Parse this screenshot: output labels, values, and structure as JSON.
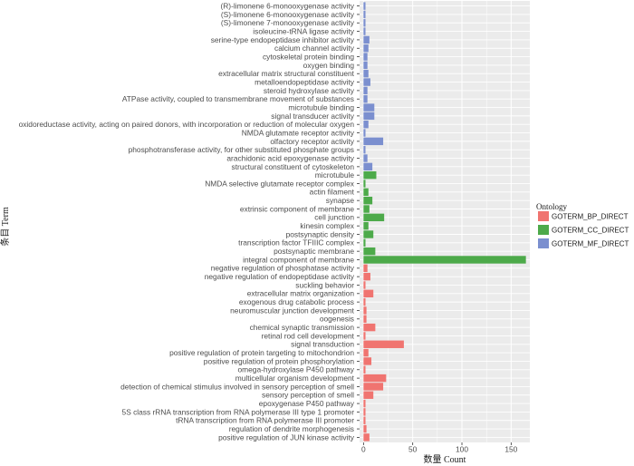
{
  "chart_data": {
    "type": "bar",
    "title": "",
    "xlabel": "数量 Count",
    "ylabel": "条目 Term",
    "xlim": [
      -4,
      169
    ],
    "xticks": [
      0,
      50,
      100,
      150
    ],
    "grid": true,
    "legend": {
      "title": "Ontology",
      "position": "right"
    },
    "series": [
      {
        "name": "GOTERM_BP_DIRECT",
        "color": "#F07470",
        "categories": [
          "negative regulation of phosphatase activity",
          "negative regulation of endopeptidase activity",
          "suckling behavior",
          "extracellular matrix organization",
          "exogenous drug catabolic process",
          "neuromuscular junction development",
          "oogenesis",
          "chemical synaptic transmission",
          "retinal rod cell development",
          "signal transduction",
          "positive regulation of protein targeting to mitochondrion",
          "positive regulation of protein phosphorylation",
          "omega-hydroxylase P450 pathway",
          "multicellular organism development",
          "detection of chemical stimulus involved in sensory perception of smell",
          "sensory perception of smell",
          "epoxygenase P450 pathway",
          "5S class rRNA transcription from RNA polymerase III type 1 promoter",
          "tRNA transcription from RNA polymerase III promoter",
          "regulation of dendrite morphogenesis",
          "positive regulation of JUN kinase activity"
        ],
        "values": [
          4,
          7,
          2,
          10,
          2,
          3,
          3,
          12,
          2,
          41,
          5,
          8,
          2,
          23,
          20,
          10,
          2,
          2,
          2,
          3,
          6
        ]
      },
      {
        "name": "GOTERM_CC_DIRECT",
        "color": "#4DAA4A",
        "categories": [
          "microtubule",
          "NMDA selective glutamate receptor complex",
          "actin filament",
          "synapse",
          "extrinsic component of membrane",
          "cell junction",
          "kinesin complex",
          "postsynaptic density",
          "transcription factor TFIIIC complex",
          "postsynaptic membrane",
          "integral component of membrane"
        ],
        "values": [
          13,
          2,
          5,
          9,
          6,
          21,
          5,
          10,
          2,
          12,
          165
        ]
      },
      {
        "name": "GOTERM_MF_DIRECT",
        "color": "#7B8FCF",
        "categories": [
          "(R)-limonene 6-monooxygenase activity",
          "(S)-limonene 6-monooxygenase activity",
          "(S)-limonene 7-monooxygenase activity",
          "isoleucine-tRNA ligase activity",
          "serine-type endopeptidase inhibitor activity",
          "calcium channel activity",
          "cytoskeletal protein binding",
          "oxygen binding",
          "extracellular matrix structural constituent",
          "metalloendopeptidase activity",
          "steroid hydroxylase activity",
          "ATPase activity, coupled to transmembrane movement of substances",
          "microtubule binding",
          "signal transducer activity",
          "oxidoreductase activity, acting on paired donors, with incorporation or reduction of molecular oxygen",
          "NMDA glutamate receptor activity",
          "olfactory receptor activity",
          "phosphotransferase activity, for other substituted phosphate groups",
          "arachidonic acid epoxygenase activity",
          "structural constituent of cytoskeleton"
        ],
        "values": [
          2,
          2,
          2,
          2,
          6,
          5,
          4,
          4,
          5,
          7,
          4,
          4,
          11,
          11,
          5,
          2,
          20,
          2,
          4,
          9
        ]
      }
    ]
  }
}
